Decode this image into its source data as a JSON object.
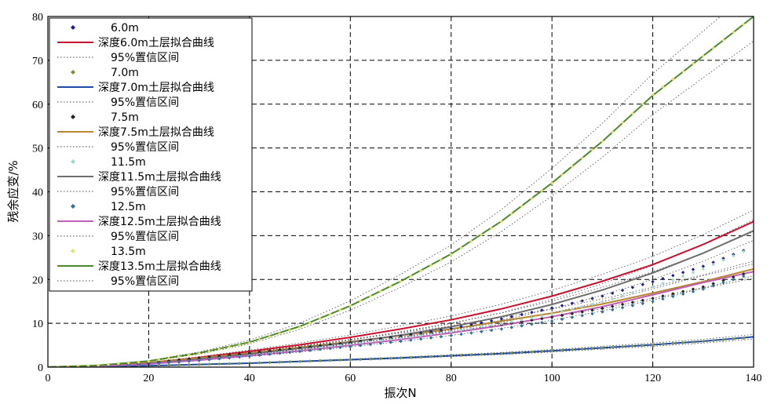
{
  "chart_data": {
    "type": "line",
    "xlabel": "振次N",
    "ylabel": "残余应变/%",
    "xlim": [
      0,
      140
    ],
    "ylim": [
      0,
      80
    ],
    "x_ticks": [
      "0",
      "20",
      "40",
      "60",
      "80",
      "100",
      "120",
      "140"
    ],
    "y_ticks": [
      "0",
      "10",
      "20",
      "30",
      "40",
      "50",
      "60",
      "70",
      "80"
    ],
    "grid": "dashed",
    "legend_position": "top-left",
    "x": [
      0,
      10,
      20,
      30,
      40,
      50,
      60,
      70,
      80,
      90,
      100,
      110,
      120,
      130,
      140
    ],
    "series": [
      {
        "name": "6.0m",
        "kind": "markers",
        "color": "#1f1f8f",
        "values": [
          0,
          0.2,
          0.8,
          1.8,
          3.0,
          4.3,
          5.6,
          7.1,
          8.8,
          11.0,
          13.5,
          16.2,
          19.5,
          23.0,
          27.5
        ]
      },
      {
        "name": "深度6.0m土层拟合曲线",
        "kind": "fit",
        "color": "#c8102e",
        "values": [
          0,
          0.3,
          1.0,
          2.2,
          3.6,
          5.1,
          6.8,
          8.7,
          10.8,
          13.3,
          16.2,
          19.6,
          23.4,
          28.0,
          33.2
        ]
      },
      {
        "name": "95%置信区间",
        "kind": "ci",
        "color": "#7a7a7a"
      },
      {
        "name": "7.0m",
        "kind": "markers",
        "color": "#7a8f3a",
        "values": [
          0,
          0.1,
          0.3,
          0.6,
          0.9,
          1.3,
          1.7,
          2.1,
          2.6,
          3.1,
          3.7,
          4.4,
          5.1,
          5.9,
          6.8
        ]
      },
      {
        "name": "深度7.0m土层拟合曲线",
        "kind": "fit",
        "color": "#1f4aa8",
        "values": [
          0,
          0.1,
          0.3,
          0.6,
          0.9,
          1.3,
          1.7,
          2.1,
          2.6,
          3.1,
          3.7,
          4.4,
          5.1,
          5.9,
          6.9
        ]
      },
      {
        "name": "95%置信区间",
        "kind": "ci",
        "color": "#7a7a7a"
      },
      {
        "name": "7.5m",
        "kind": "markers",
        "color": "#222222",
        "values": [
          0,
          0.3,
          1.0,
          2.1,
          3.2,
          4.4,
          5.6,
          6.9,
          8.2,
          9.7,
          11.4,
          13.4,
          15.7,
          18.3,
          22.0
        ]
      },
      {
        "name": "深度7.5m土层拟合曲线",
        "kind": "fit",
        "color": "#b8862e",
        "values": [
          0,
          0.3,
          1.0,
          2.1,
          3.2,
          4.5,
          5.8,
          7.2,
          8.7,
          10.5,
          12.3,
          14.4,
          16.9,
          19.5,
          22.4
        ]
      },
      {
        "name": "95%置信区间",
        "kind": "ci",
        "color": "#7a7a7a"
      },
      {
        "name": "11.5m",
        "kind": "markers",
        "color": "#9fd8d2",
        "values": [
          0,
          0.2,
          0.7,
          1.6,
          2.7,
          3.9,
          5.2,
          6.6,
          8.1,
          9.9,
          12.1,
          14.9,
          18.3,
          22.4,
          27.4
        ]
      },
      {
        "name": "深度11.5m土层拟合曲线",
        "kind": "fit",
        "color": "#6e6e6e",
        "values": [
          0,
          0.2,
          0.8,
          1.8,
          3.0,
          4.3,
          5.7,
          7.3,
          9.2,
          11.5,
          14.3,
          17.6,
          21.5,
          26.0,
          31.1
        ]
      },
      {
        "name": "95%置信区间",
        "kind": "ci",
        "color": "#7a7a7a"
      },
      {
        "name": "12.5m",
        "kind": "markers",
        "color": "#2e6fa0",
        "values": [
          0,
          0.2,
          0.7,
          1.5,
          2.5,
          3.6,
          4.7,
          5.9,
          7.2,
          8.7,
          10.5,
          12.6,
          15.0,
          17.8,
          21.5
        ]
      },
      {
        "name": "深度12.5m土层拟合曲线",
        "kind": "fit",
        "color": "#c25db8",
        "values": [
          0,
          0.2,
          0.7,
          1.6,
          2.6,
          3.7,
          5.0,
          6.3,
          7.8,
          9.5,
          11.5,
          13.8,
          16.5,
          19.3,
          21.8
        ]
      },
      {
        "name": "95%置信区间",
        "kind": "ci",
        "color": "#7a7a7a"
      },
      {
        "name": "13.5m",
        "kind": "markers",
        "color": "#e3e07a",
        "values": [
          0,
          0.4,
          1.3,
          3.1,
          5.5,
          9.1,
          14.0,
          19.5,
          25.7,
          33.2,
          42.0,
          51.5,
          62.2,
          71.0,
          80.0
        ]
      },
      {
        "name": "深度13.5m土层拟合曲线",
        "kind": "fit",
        "color": "#4d8a2a",
        "values": [
          0,
          0.4,
          1.4,
          3.2,
          5.7,
          9.3,
          14.0,
          19.6,
          25.8,
          33.3,
          42.0,
          51.5,
          62.0,
          71.0,
          80.0
        ]
      },
      {
        "name": "95%置信区间",
        "kind": "ci",
        "color": "#7a7a7a"
      }
    ]
  }
}
